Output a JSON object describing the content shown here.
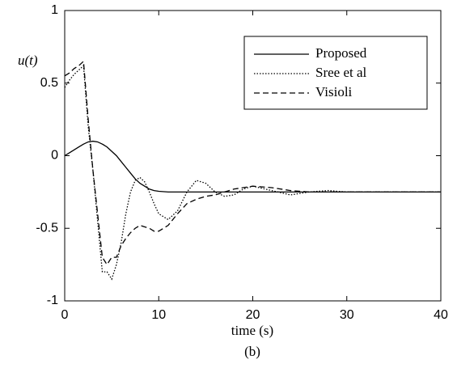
{
  "chart_data": {
    "type": "line",
    "ylabel": "u(t)",
    "xlabel": "time (s)",
    "caption": "(b)",
    "x": [
      0,
      0.5,
      1,
      1.5,
      2,
      2.5,
      3,
      3.5,
      4,
      4.5,
      5,
      5.5,
      6,
      6.5,
      7,
      7.5,
      8,
      8.5,
      9,
      9.5,
      10,
      11,
      12,
      13,
      14,
      15,
      16,
      17,
      18,
      19,
      20,
      22,
      24,
      26,
      28,
      30,
      35,
      40
    ],
    "series": [
      {
        "name": "Proposed",
        "color": "#000000",
        "dash": "solid",
        "values": [
          0,
          0.02,
          0.04,
          0.06,
          0.08,
          0.095,
          0.1,
          0.095,
          0.08,
          0.06,
          0.03,
          0,
          -0.04,
          -0.08,
          -0.12,
          -0.16,
          -0.19,
          -0.21,
          -0.23,
          -0.24,
          -0.245,
          -0.25,
          -0.25,
          -0.25,
          -0.25,
          -0.25,
          -0.25,
          -0.25,
          -0.25,
          -0.25,
          -0.25,
          -0.25,
          -0.25,
          -0.25,
          -0.25,
          -0.25,
          -0.25,
          -0.25
        ]
      },
      {
        "name": "Sree et al",
        "color": "#000000",
        "dash": "dotted",
        "values": [
          0.47,
          0.52,
          0.56,
          0.59,
          0.62,
          0.2,
          -0.1,
          -0.45,
          -0.8,
          -0.8,
          -0.85,
          -0.75,
          -0.6,
          -0.4,
          -0.25,
          -0.17,
          -0.15,
          -0.18,
          -0.25,
          -0.33,
          -0.4,
          -0.44,
          -0.38,
          -0.25,
          -0.17,
          -0.19,
          -0.25,
          -0.28,
          -0.27,
          -0.23,
          -0.21,
          -0.24,
          -0.27,
          -0.25,
          -0.24,
          -0.25,
          -0.25,
          -0.25
        ]
      },
      {
        "name": "Visioli",
        "color": "#000000",
        "dash": "dashed",
        "values": [
          0.55,
          0.57,
          0.6,
          0.62,
          0.65,
          0.25,
          -0.1,
          -0.4,
          -0.7,
          -0.75,
          -0.7,
          -0.7,
          -0.62,
          -0.57,
          -0.53,
          -0.5,
          -0.48,
          -0.49,
          -0.5,
          -0.52,
          -0.52,
          -0.48,
          -0.4,
          -0.33,
          -0.3,
          -0.28,
          -0.27,
          -0.25,
          -0.23,
          -0.22,
          -0.21,
          -0.22,
          -0.24,
          -0.25,
          -0.25,
          -0.25,
          -0.25,
          -0.25
        ]
      }
    ],
    "xlim": [
      0,
      40
    ],
    "xticks": [
      0,
      10,
      20,
      30,
      40
    ],
    "ylim": [
      -1,
      1
    ],
    "yticks": [
      -1,
      -0.5,
      0,
      0.5,
      1
    ],
    "grid": false,
    "legend": "upper right"
  }
}
